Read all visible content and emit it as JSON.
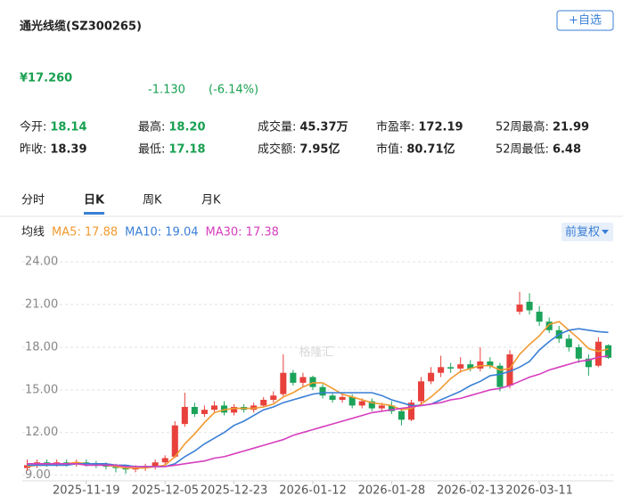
{
  "header": {
    "title": "通光线缆(SZ300265)",
    "button": "+自选"
  },
  "quote": {
    "price": "¥17.260",
    "change": "-1.130",
    "change_pct": "(-6.14%)",
    "color": "#18a050"
  },
  "stats": [
    [
      {
        "label": "今开:",
        "value": "18.14",
        "color": "#18a050"
      },
      {
        "label": "最高:",
        "value": "18.20",
        "color": "#18a050"
      },
      {
        "label": "成交量:",
        "value": "45.37万",
        "color": "#222222"
      },
      {
        "label": "市盈率:",
        "value": "172.19",
        "color": "#222222"
      },
      {
        "label": "52周最高:",
        "value": "21.99",
        "color": "#222222"
      }
    ],
    [
      {
        "label": "昨收:",
        "value": "18.39",
        "color": "#222222"
      },
      {
        "label": "最低:",
        "value": "17.18",
        "color": "#18a050"
      },
      {
        "label": "成交额:",
        "value": "7.95亿",
        "color": "#222222"
      },
      {
        "label": "市值:",
        "value": "80.71亿",
        "color": "#222222"
      },
      {
        "label": "52周最低:",
        "value": "6.48",
        "color": "#222222"
      }
    ]
  ],
  "tabs": {
    "items": [
      "分时",
      "日K",
      "周K",
      "月K"
    ],
    "active": 1
  },
  "adjust": "前复权",
  "watermark": "格隆汇",
  "chart_data": {
    "type": "candlestick",
    "legend_title": "均线",
    "grid": true,
    "up_color": "#e8413c",
    "down_color": "#1ba35a",
    "ylim": [
      8.6,
      24.7
    ],
    "yticks": [
      {
        "value": 9,
        "label": "9.00"
      },
      {
        "value": 12,
        "label": "12.00"
      },
      {
        "value": 15,
        "label": "15.00"
      },
      {
        "value": 18,
        "label": "18.00"
      },
      {
        "value": 21,
        "label": "21.00"
      },
      {
        "value": 24,
        "label": "24.00"
      }
    ],
    "categories": [
      null,
      null,
      null,
      null,
      null,
      null,
      "2025-11-19",
      null,
      null,
      null,
      null,
      null,
      null,
      null,
      "2025-12-05",
      null,
      null,
      null,
      null,
      null,
      null,
      "2025-12-23",
      null,
      null,
      null,
      null,
      null,
      null,
      null,
      "2026-01-12",
      null,
      null,
      null,
      null,
      null,
      null,
      null,
      "2026-01-28",
      null,
      null,
      null,
      null,
      null,
      null,
      null,
      "2026-02-13",
      null,
      null,
      null,
      null,
      null,
      null,
      "2026-03-11",
      null,
      null,
      null,
      null,
      null,
      null,
      null
    ],
    "open": [
      9.5,
      9.7,
      9.9,
      9.8,
      9.9,
      9.8,
      9.9,
      9.8,
      9.7,
      9.6,
      9.5,
      9.4,
      9.5,
      9.6,
      9.9,
      10.3,
      12.6,
      13.8,
      13.3,
      13.6,
      13.9,
      13.4,
      13.8,
      13.6,
      13.9,
      14.3,
      14.7,
      16.2,
      15.5,
      15.9,
      15.2,
      14.6,
      14.3,
      14.5,
      13.9,
      14.2,
      13.7,
      13.9,
      13.5,
      12.9,
      14.2,
      15.6,
      16.2,
      16.6,
      16.5,
      16.8,
      16.5,
      17.0,
      16.7,
      15.3,
      20.5,
      21.2,
      20.5,
      19.8,
      19.2,
      18.6,
      18.0,
      17.2,
      16.7,
      18.14
    ],
    "high": [
      10.1,
      10.1,
      10.1,
      10.1,
      10.1,
      10.1,
      10.1,
      10.0,
      9.9,
      9.8,
      9.7,
      9.7,
      9.8,
      10.1,
      10.4,
      12.8,
      14.8,
      14.1,
      13.9,
      14.2,
      14.2,
      14.0,
      14.0,
      14.1,
      14.5,
      14.9,
      17.5,
      16.4,
      16.2,
      16.0,
      15.4,
      14.8,
      14.7,
      14.7,
      14.4,
      14.4,
      14.1,
      14.2,
      13.7,
      14.3,
      15.9,
      16.6,
      17.4,
      16.9,
      17.3,
      17.1,
      18.0,
      17.3,
      16.9,
      17.8,
      21.9,
      21.8,
      20.9,
      20.1,
      19.5,
      18.9,
      18.2,
      17.5,
      18.7,
      18.2
    ],
    "low": [
      9.3,
      9.5,
      9.6,
      9.6,
      9.6,
      9.6,
      9.6,
      9.5,
      9.4,
      9.2,
      9.1,
      9.2,
      9.3,
      9.4,
      9.7,
      10.2,
      12.4,
      13.1,
      13.1,
      13.4,
      13.2,
      13.2,
      13.4,
      13.4,
      13.8,
      14.1,
      14.5,
      15.3,
      15.2,
      15.0,
      14.4,
      14.1,
      14.1,
      13.7,
      13.7,
      13.5,
      13.5,
      13.3,
      12.5,
      12.8,
      14.0,
      15.4,
      15.9,
      16.2,
      16.2,
      16.3,
      16.3,
      16.5,
      14.9,
      15.1,
      20.3,
      20.3,
      19.5,
      19.0,
      18.3,
      17.7,
      16.9,
      16.0,
      16.6,
      17.18
    ],
    "close": [
      9.7,
      9.9,
      9.8,
      9.9,
      9.8,
      9.9,
      9.8,
      9.7,
      9.6,
      9.5,
      9.4,
      9.5,
      9.6,
      9.9,
      10.2,
      12.5,
      13.8,
      13.3,
      13.6,
      13.9,
      13.4,
      13.8,
      13.6,
      13.9,
      14.3,
      14.6,
      16.2,
      15.5,
      15.9,
      15.2,
      14.6,
      14.3,
      14.5,
      13.9,
      14.2,
      13.7,
      13.9,
      13.5,
      12.9,
      14.1,
      15.6,
      16.2,
      16.6,
      16.5,
      16.8,
      16.5,
      17.0,
      16.7,
      15.2,
      17.5,
      21.0,
      20.6,
      19.8,
      19.2,
      18.6,
      18.0,
      17.2,
      16.6,
      18.39,
      17.26
    ],
    "ma": [
      {
        "name": "MA5: 17.88",
        "color": "#f09a30",
        "values": [
          9.6,
          9.7,
          9.7,
          9.8,
          9.8,
          9.9,
          9.8,
          9.8,
          9.7,
          9.6,
          9.5,
          9.5,
          9.5,
          9.6,
          9.7,
          10.3,
          11.2,
          11.9,
          12.7,
          13.4,
          13.6,
          13.7,
          13.7,
          13.7,
          13.8,
          14.0,
          14.5,
          14.8,
          15.2,
          15.5,
          15.5,
          15.1,
          14.7,
          14.5,
          14.3,
          14.1,
          14.0,
          13.9,
          13.6,
          13.7,
          14.0,
          14.5,
          15.1,
          15.8,
          16.3,
          16.5,
          16.7,
          16.7,
          16.4,
          16.5,
          17.5,
          18.2,
          18.8,
          19.6,
          19.8,
          19.2,
          18.6,
          17.9,
          17.7,
          17.88
        ]
      },
      {
        "name": "MA10: 19.04",
        "color": "#3a7fd5",
        "values": [
          9.7,
          9.7,
          9.7,
          9.7,
          9.7,
          9.8,
          9.8,
          9.8,
          9.8,
          9.7,
          9.7,
          9.6,
          9.6,
          9.6,
          9.6,
          9.8,
          10.3,
          10.7,
          11.2,
          11.6,
          12.0,
          12.5,
          12.8,
          13.2,
          13.6,
          13.8,
          14.1,
          14.3,
          14.5,
          14.7,
          14.8,
          14.8,
          14.8,
          14.8,
          14.8,
          14.8,
          14.6,
          14.3,
          14.1,
          13.9,
          13.9,
          14.0,
          14.3,
          14.6,
          14.9,
          15.3,
          15.6,
          16.0,
          16.1,
          16.3,
          16.6,
          17.0,
          17.8,
          18.4,
          18.9,
          19.2,
          19.3,
          19.2,
          19.1,
          19.04
        ]
      },
      {
        "name": "MA30: 17.38",
        "color": "#d63fbf",
        "values": [
          9.8,
          9.8,
          9.8,
          9.8,
          9.8,
          9.8,
          9.7,
          9.7,
          9.7,
          9.7,
          9.6,
          9.6,
          9.6,
          9.6,
          9.6,
          9.7,
          9.8,
          9.9,
          10.0,
          10.2,
          10.3,
          10.5,
          10.7,
          10.9,
          11.1,
          11.3,
          11.5,
          11.8,
          12.0,
          12.2,
          12.4,
          12.6,
          12.8,
          13.0,
          13.2,
          13.4,
          13.5,
          13.6,
          13.7,
          13.8,
          13.9,
          14.0,
          14.1,
          14.3,
          14.4,
          14.6,
          14.8,
          15.0,
          15.1,
          15.3,
          15.6,
          15.9,
          16.1,
          16.4,
          16.6,
          16.8,
          17.0,
          17.1,
          17.3,
          17.38
        ]
      }
    ]
  }
}
